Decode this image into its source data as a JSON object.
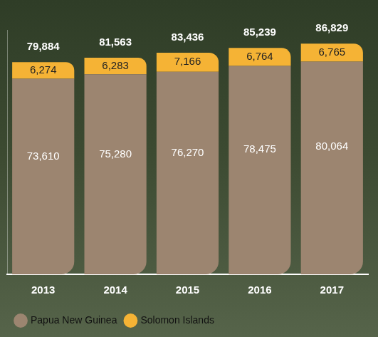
{
  "chart_data": {
    "type": "bar",
    "stacked": true,
    "data_labels": true,
    "grid": false,
    "tick_labels": "x",
    "legend": "bottom-left",
    "categories": [
      "2013",
      "2014",
      "2015",
      "2016",
      "2017"
    ],
    "ylim": [
      0,
      92000
    ],
    "series": [
      {
        "name": "Papua New Guinea",
        "color": "#9c8570",
        "values": [
          73610,
          75280,
          76270,
          78475,
          80064
        ],
        "value_labels": [
          "73,610",
          "75,280",
          "76,270",
          "78,475",
          "80,064"
        ]
      },
      {
        "name": "Solomon Islands",
        "color": "#f5b335",
        "values": [
          6274,
          6283,
          7166,
          6764,
          6765
        ],
        "value_labels": [
          "6,274",
          "6,283",
          "7,166",
          "6,764",
          "6,765"
        ]
      }
    ],
    "totals": [
      79884,
      81563,
      83436,
      85239,
      86829
    ],
    "total_labels": [
      "79,884",
      "81,563",
      "83,436",
      "85,239",
      "86,829"
    ]
  }
}
